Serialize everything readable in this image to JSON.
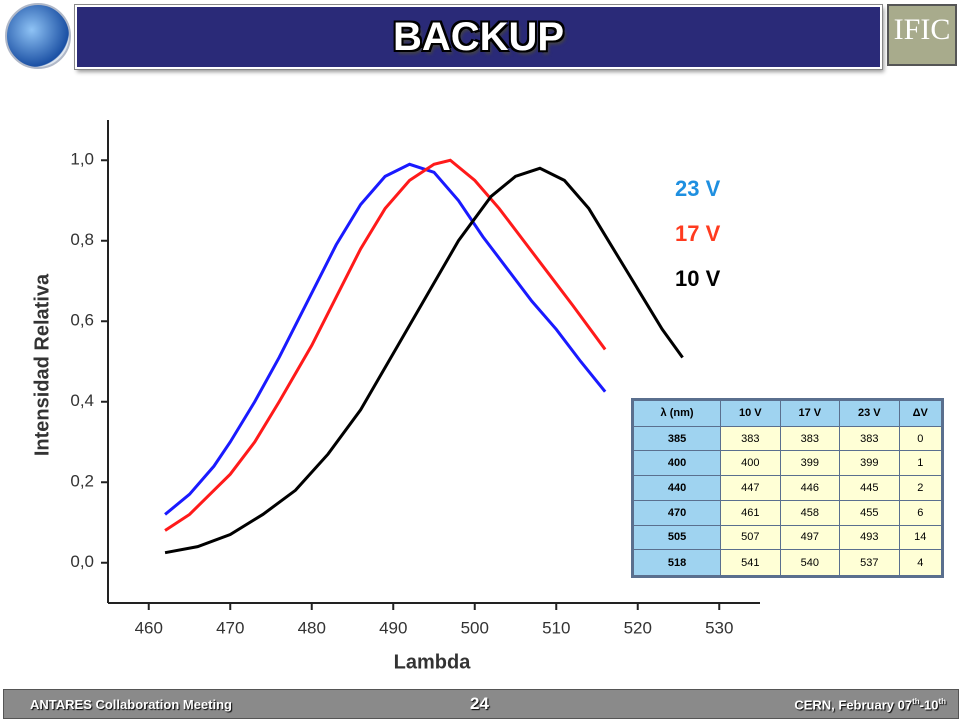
{
  "header": {
    "title": "BACKUP",
    "logo_right": "IFIC"
  },
  "chart_data": {
    "type": "line",
    "x_label": "Lambda",
    "y_label": "Intensidad Relativa",
    "xlim": [
      455,
      535
    ],
    "xticks": [
      460,
      470,
      480,
      490,
      500,
      510,
      520,
      530
    ],
    "ylim": [
      -0.1,
      1.1
    ],
    "yticks": [
      {
        "value": 0,
        "label": "0,0"
      },
      {
        "value": 0.2,
        "label": "0,2"
      },
      {
        "value": 0.4,
        "label": "0,4"
      },
      {
        "value": 0.6,
        "label": "0,6"
      },
      {
        "value": 0.8,
        "label": "0,8"
      },
      {
        "value": 1.0,
        "label": "1,0"
      }
    ],
    "series": [
      {
        "name": "23 V",
        "color": "#1a1aff",
        "label_color": "#1e8fe0",
        "x": [
          462,
          465,
          468,
          470,
          473,
          476,
          480,
          483,
          486,
          489,
          492,
          495,
          498,
          501,
          504,
          507,
          510,
          513,
          516
        ],
        "values": [
          0.12,
          0.17,
          0.24,
          0.3,
          0.4,
          0.51,
          0.67,
          0.79,
          0.89,
          0.96,
          0.99,
          0.97,
          0.9,
          0.81,
          0.73,
          0.65,
          0.58,
          0.5,
          0.425
        ]
      },
      {
        "name": "17 V",
        "color": "#ff1a1a",
        "label_color": "#ff3b1f",
        "x": [
          462,
          465,
          468,
          470,
          473,
          476,
          480,
          483,
          486,
          489,
          492,
          495,
          497,
          500,
          503,
          506,
          509,
          512,
          516
        ],
        "values": [
          0.08,
          0.12,
          0.18,
          0.22,
          0.3,
          0.4,
          0.54,
          0.66,
          0.78,
          0.88,
          0.95,
          0.99,
          1.0,
          0.95,
          0.88,
          0.8,
          0.72,
          0.64,
          0.53
        ]
      },
      {
        "name": "10 V",
        "color": "#000000",
        "label_color": "#000000",
        "x": [
          462,
          466,
          470,
          474,
          478,
          482,
          486,
          490,
          494,
          498,
          502,
          505,
          508,
          511,
          514,
          517,
          520,
          523,
          525.5
        ],
        "values": [
          0.025,
          0.04,
          0.07,
          0.12,
          0.18,
          0.27,
          0.38,
          0.52,
          0.66,
          0.8,
          0.91,
          0.96,
          0.98,
          0.95,
          0.88,
          0.78,
          0.68,
          0.58,
          0.51
        ]
      }
    ]
  },
  "table": {
    "header": [
      "λ (nm)",
      "10 V",
      "17 V",
      "23 V",
      "ΔV"
    ],
    "rows": [
      [
        "385",
        "383",
        "383",
        "383",
        "0"
      ],
      [
        "400",
        "400",
        "399",
        "399",
        "1"
      ],
      [
        "440",
        "447",
        "446",
        "445",
        "2"
      ],
      [
        "470",
        "461",
        "458",
        "455",
        "6"
      ],
      [
        "505",
        "507",
        "497",
        "493",
        "14"
      ],
      [
        "518",
        "541",
        "540",
        "537",
        "4"
      ]
    ]
  },
  "footer": {
    "left": "ANTARES Collaboration Meeting",
    "page": "24",
    "right": [
      "CERN, February 07",
      "th",
      "-10",
      "th"
    ]
  }
}
